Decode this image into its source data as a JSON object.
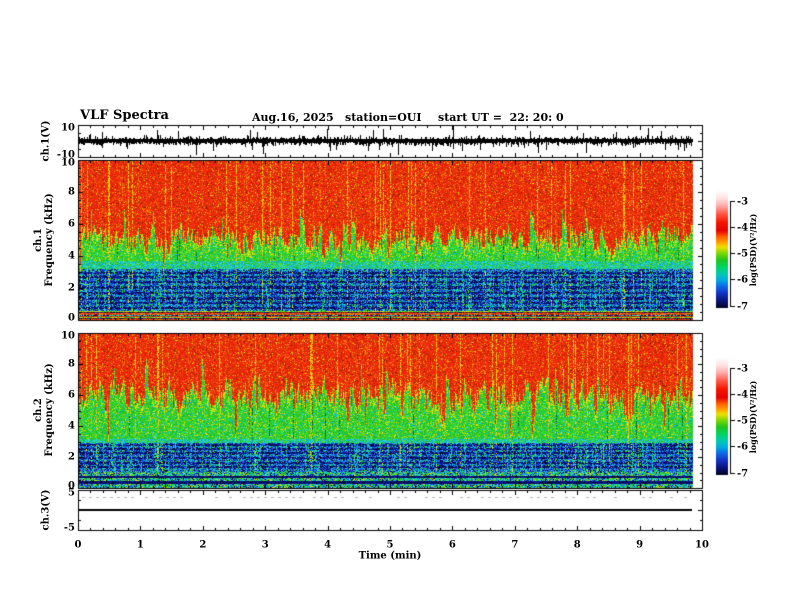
{
  "header": {
    "title": "VLF Spectra",
    "date": "Aug.16, 2025",
    "station": "station=OUI",
    "start_ut": "start UT =  22: 20: 0"
  },
  "axes": {
    "x": {
      "label": "Time (min)",
      "ticks": [
        "0",
        "1",
        "2",
        "3",
        "4",
        "5",
        "6",
        "7",
        "8",
        "9",
        "10"
      ],
      "range": [
        0,
        10
      ],
      "minor_step": 0.2
    },
    "ch1_volt": {
      "label": "ch.1(V)",
      "ticks": [
        "10",
        "-10"
      ],
      "range": [
        -10,
        10
      ]
    },
    "ch1_spec": {
      "label_channel": "ch.1",
      "label_axis": "Frequency (kHz)",
      "ticks": [
        "10",
        "8",
        "6",
        "4",
        "2",
        "0"
      ],
      "range": [
        0,
        10
      ]
    },
    "ch2_spec": {
      "label_channel": "ch.2",
      "label_axis": "Frequency (kHz)",
      "ticks": [
        "10",
        "8",
        "6",
        "4",
        "2",
        "0"
      ],
      "range": [
        0,
        10
      ]
    },
    "ch3_volt": {
      "label": "ch.3(V)",
      "ticks": [
        "5",
        "-5"
      ],
      "range": [
        -5,
        5
      ]
    }
  },
  "colorbars": [
    {
      "label": "log(PSD)(V²/Hz)",
      "ticks": [
        "-3",
        "-4",
        "-5",
        "-6",
        "-7"
      ],
      "range": [
        -7,
        -3
      ]
    },
    {
      "label": "log(PSD)(V²/Hz)",
      "ticks": [
        "-3",
        "-4",
        "-5",
        "-6",
        "-7"
      ],
      "range": [
        -7,
        -3
      ]
    }
  ],
  "chart_data": {
    "type": "heatmap",
    "title": "VLF Spectra",
    "subtitle": "Aug.16, 2025  station=OUI  start UT = 22:20:0",
    "xlabel": "Time (min)",
    "x_range": [
      0,
      10
    ],
    "data_end_min": 9.85,
    "grid": false,
    "legend_position": "right-colorbars",
    "panels": [
      {
        "id": "ch1_waveform",
        "type": "line",
        "ylabel": "ch.1(V)",
        "ylim": [
          -10,
          10
        ],
        "description": "dense broadband noise trace, mean 0 V, typical ±4 V, frequent spikes to ±10 V, spans 0 to 9.85 min"
      },
      {
        "id": "ch1_spectrogram",
        "type": "heatmap",
        "ylabel": "ch.1 Frequency (kHz)",
        "ylim": [
          0,
          10
        ],
        "zlabel": "log(PSD)(V²/Hz)",
        "zlim": [
          -7,
          -3
        ],
        "description": "red (~-3.5) above ~5-6 kHz, spiky green band 3.7-6 kHz, cyan 3.2-3.7 kHz, blue with dark horizontal lines 0.5-3.2 kHz (~-6.5), mixed red/dark rows below 0.5 kHz, vertical sferic streaks throughout"
      },
      {
        "id": "ch2_spectrogram",
        "type": "heatmap",
        "ylabel": "ch.2 Frequency (kHz)",
        "ylim": [
          0,
          10
        ],
        "zlabel": "log(PSD)(V²/Hz)",
        "zlim": [
          -7,
          -3
        ],
        "description": "red above ~6-7.5 kHz, tall spiky green band 3.2-7 kHz, blue banded zone 1.1-2.9 kHz, green/cyan mix below 1.1 kHz, dense yellow vertical sferic streaks"
      },
      {
        "id": "ch3_waveform",
        "type": "line",
        "ylabel": "ch.3(V)",
        "ylim": [
          -5,
          5
        ],
        "values": "constant 0 V from 0 to 9.85 min"
      }
    ],
    "spectrogram_ch1": {
      "seed": 20250816,
      "green_top_base": 5.15,
      "green_top_amp": 1.15,
      "cyan_top": 3.7,
      "blue_top": 3.2,
      "blue_bottom": 0.55,
      "dark_rows": [
        0.75,
        1.05,
        1.35,
        1.7,
        2.05,
        2.4,
        2.7,
        2.95
      ],
      "dark_row_halfwidth": 0.07,
      "sferic_prob": 0.05,
      "warm_prob": 0.13,
      "bottom": "mixed_red",
      "bottom_dark_rows": []
    },
    "spectrogram_ch2": {
      "seed": 8162025,
      "green_top_base": 5.9,
      "green_top_amp": 1.55,
      "cyan_top": 3.15,
      "blue_top": 2.9,
      "blue_bottom": 1.05,
      "dark_rows": [
        1.35,
        1.65,
        1.95,
        2.25,
        2.55,
        2.8
      ],
      "dark_row_halfwidth": 0.07,
      "sferic_prob": 0.07,
      "warm_prob": 0.17,
      "bottom": "green_mix",
      "bottom_dark_rows": [
        0.35,
        0.7
      ]
    },
    "palette": {
      "red": [
        "#f02808",
        "#e62000",
        "#f83810",
        "#d82808",
        "#ee3418"
      ],
      "darkred": [
        "#a01800",
        "#8a2000",
        "#b82a00"
      ],
      "orange": [
        "#f07808",
        "#e86010",
        "#f09000"
      ],
      "streak": [
        "#f0c010",
        "#e8d820",
        "#f0a808"
      ],
      "fringe": [
        "#d8e018",
        "#b8d810",
        "#e8e020"
      ],
      "green": [
        "#28c428",
        "#3cd414",
        "#1ed452",
        "#58dc20",
        "#20b830"
      ],
      "dkgreen": [
        "#0a6a1a",
        "#0e7828"
      ],
      "cyan": [
        "#18bcd4",
        "#28d0b0",
        "#10a8e0",
        "#30e0c8"
      ],
      "blue": [
        "#2048dc",
        "#1c64e8",
        "#0c88e8",
        "#3040c8"
      ],
      "navy": [
        "#061080",
        "#040a54",
        "#101e9e",
        "#02062e"
      ]
    },
    "colorbar_gradient": [
      [
        0,
        "#ffffff"
      ],
      [
        0.07,
        "#ffe0e0"
      ],
      [
        0.13,
        "#ffaaaa"
      ],
      [
        0.2,
        "#ff5544"
      ],
      [
        0.27,
        "#f51400"
      ],
      [
        0.34,
        "#e60000"
      ],
      [
        0.39,
        "#ff5a00"
      ],
      [
        0.44,
        "#ffa000"
      ],
      [
        0.48,
        "#eee000"
      ],
      [
        0.53,
        "#7fd800"
      ],
      [
        0.59,
        "#1ec41e"
      ],
      [
        0.65,
        "#00d464"
      ],
      [
        0.71,
        "#00c8b4"
      ],
      [
        0.76,
        "#00aadf"
      ],
      [
        0.81,
        "#0c6ce8"
      ],
      [
        0.87,
        "#1232c4"
      ],
      [
        0.93,
        "#0a1482"
      ],
      [
        0.975,
        "#03083e"
      ],
      [
        1,
        "#000018"
      ]
    ],
    "frame_color": "#000000",
    "background_color": "#ffffff"
  }
}
